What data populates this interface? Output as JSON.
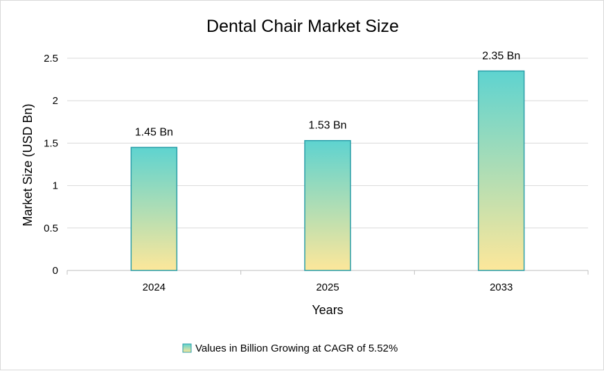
{
  "chart_data": {
    "type": "bar",
    "title": "Dental Chair Market Size",
    "xlabel": "Years",
    "ylabel": "Market Size (USD Bn)",
    "categories": [
      "2024",
      "2025",
      "2033"
    ],
    "series": [
      {
        "name": "Values in Billion Growing at CAGR of 5.52%",
        "values": [
          1.45,
          1.53,
          2.35
        ],
        "data_labels": [
          "1.45 Bn",
          "1.53 Bn",
          "2.35 Bn"
        ]
      }
    ],
    "ylim": [
      0,
      2.5
    ],
    "yticks": [
      "0",
      "0.5",
      "1",
      "1.5",
      "2",
      "2.5"
    ],
    "grid": true,
    "legend_position": "bottom",
    "colors": {
      "bar_top": "#5ed3d0",
      "bar_bottom": "#fde79a",
      "bar_border": "#2a9ea8",
      "grid": "#d9d9d9"
    }
  }
}
